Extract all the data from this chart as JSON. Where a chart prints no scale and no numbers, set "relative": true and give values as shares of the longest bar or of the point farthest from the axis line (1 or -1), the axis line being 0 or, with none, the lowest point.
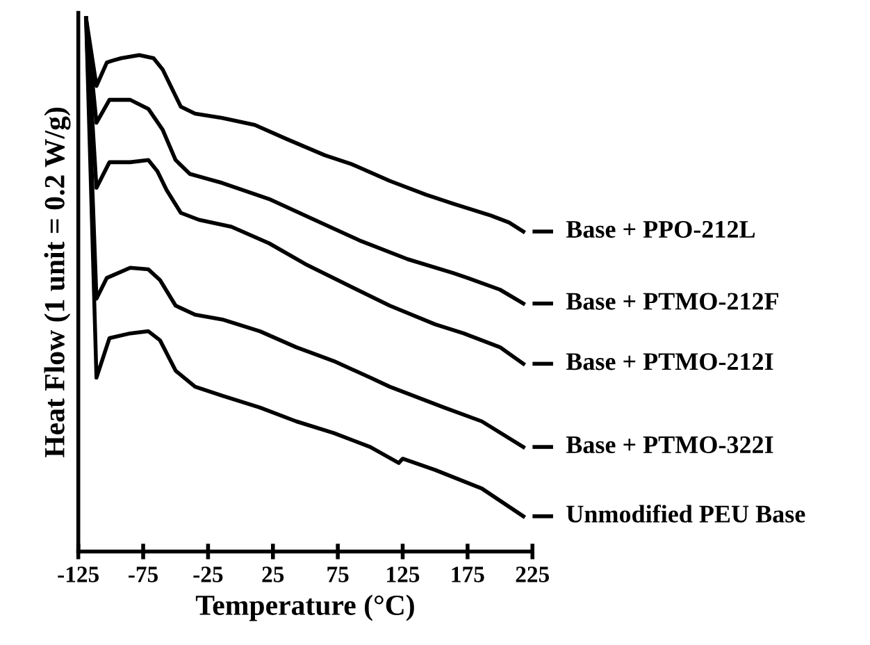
{
  "chart_data": {
    "type": "line",
    "relative": true,
    "xlabel": "Temperature (°C)",
    "ylabel": "Heat Flow (1 unit = 0.2 W/g)",
    "xlim": [
      -125,
      225
    ],
    "xticks": [
      -125,
      -75,
      -25,
      25,
      75,
      125,
      175,
      225
    ],
    "grid": false,
    "legend": "right",
    "marker": "none",
    "line_style": "solid",
    "series": [
      {
        "name": "Base + PPO-212L",
        "color": "#000000",
        "x": [
          -119,
          -111,
          -103,
          -98,
          -92,
          -78,
          -67,
          -60,
          -53,
          -46,
          -35,
          -14,
          11,
          36,
          65,
          86,
          115,
          143,
          164,
          193,
          207,
          218
        ],
        "values": [
          1.0,
          0.873,
          0.917,
          0.921,
          0.925,
          0.931,
          0.925,
          0.904,
          0.869,
          0.834,
          0.821,
          0.813,
          0.8,
          0.773,
          0.743,
          0.726,
          0.695,
          0.669,
          0.652,
          0.63,
          0.617,
          0.6
        ]
      },
      {
        "name": "Base + PTMO-212F",
        "color": "#000000",
        "x": [
          -119,
          -111,
          -101,
          -85,
          -71,
          -60,
          -50,
          -39,
          -14,
          22,
          57,
          93,
          129,
          164,
          175,
          200,
          218
        ],
        "values": [
          1.0,
          0.804,
          0.847,
          0.847,
          0.83,
          0.791,
          0.734,
          0.708,
          0.691,
          0.661,
          0.622,
          0.582,
          0.548,
          0.522,
          0.513,
          0.491,
          0.465
        ]
      },
      {
        "name": "Base + PTMO-212I",
        "color": "#000000",
        "x": [
          -119,
          -111,
          -101,
          -85,
          -71,
          -64,
          -57,
          -46,
          -32,
          -7,
          22,
          50,
          79,
          115,
          150,
          172,
          200,
          218
        ],
        "values": [
          1.0,
          0.682,
          0.73,
          0.73,
          0.734,
          0.713,
          0.678,
          0.635,
          0.622,
          0.609,
          0.578,
          0.539,
          0.504,
          0.461,
          0.426,
          0.409,
          0.383,
          0.352
        ]
      },
      {
        "name": "Base + PTMO-322I",
        "color": "#000000",
        "x": [
          -119,
          -111,
          -103,
          -85,
          -71,
          -62,
          -50,
          -35,
          -14,
          15,
          43,
          72,
          100,
          115,
          129,
          157,
          186,
          218
        ],
        "values": [
          1.0,
          0.474,
          0.513,
          0.532,
          0.529,
          0.509,
          0.461,
          0.444,
          0.435,
          0.413,
          0.383,
          0.357,
          0.326,
          0.309,
          0.296,
          0.27,
          0.244,
          0.196
        ]
      },
      {
        "name": "Unmodified PEU Base",
        "color": "#000000",
        "x": [
          -119,
          -111,
          -101,
          -85,
          -71,
          -62,
          -50,
          -35,
          -14,
          15,
          43,
          72,
          100,
          122,
          125,
          150,
          186,
          218
        ],
        "values": [
          1.0,
          0.326,
          0.4,
          0.409,
          0.413,
          0.396,
          0.339,
          0.309,
          0.292,
          0.27,
          0.244,
          0.222,
          0.196,
          0.166,
          0.174,
          0.153,
          0.118,
          0.066
        ]
      }
    ]
  }
}
